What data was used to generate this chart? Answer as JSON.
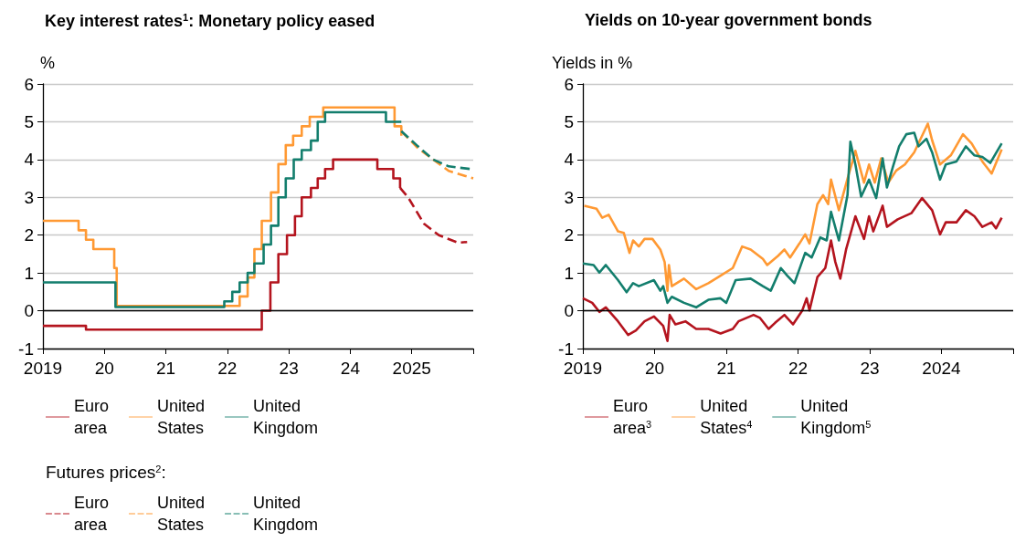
{
  "chart_data": [
    {
      "type": "line",
      "title": "Key interest rates$^{1}$: Monetary policy eased",
      "ylabel": "%",
      "legend_title": "Futures prices$^{2}$:",
      "xlim": [
        2019,
        2026
      ],
      "xticks": [
        2019,
        {
          "value": 2020,
          "label": "20"
        },
        {
          "value": 2021,
          "label": "21"
        },
        {
          "value": 2022,
          "label": "22"
        },
        {
          "value": 2023,
          "label": "23"
        },
        {
          "value": 2024,
          "label": "24"
        },
        2025,
        {
          "value": 2026,
          "label": null
        }
      ],
      "ylim": [
        -1,
        6
      ],
      "yticks": [
        -1,
        0,
        1,
        2,
        3,
        4,
        5,
        6
      ],
      "grid": "y",
      "legend": "bottom",
      "ref_lines": [
        {
          "axis": "y",
          "value": 0,
          "color": "#000000"
        }
      ],
      "series": [
        {
          "name": "Euro area",
          "type": "step",
          "color": "#b4141e",
          "line_style": "solid",
          "x": [
            2019,
            2019.7,
            2022.56,
            2022.7,
            2022.83,
            2022.97,
            2023.1,
            2023.21,
            2023.36,
            2023.47,
            2023.59,
            2023.72,
            2024.44,
            2024.7,
            2024.81
          ],
          "values": [
            -0.4,
            -0.5,
            0,
            0.75,
            1.5,
            2,
            2.5,
            3,
            3.25,
            3.5,
            3.75,
            4,
            3.75,
            3.5,
            3.25
          ]
        },
        {
          "name": "United States",
          "type": "step",
          "color": "#ff9933",
          "line_style": "solid",
          "x": [
            2019,
            2019.58,
            2019.7,
            2019.82,
            2020.16,
            2020.2,
            2022.2,
            2022.33,
            2022.44,
            2022.56,
            2022.71,
            2022.83,
            2022.95,
            2023.07,
            2023.21,
            2023.34,
            2023.56,
            2024.72,
            2024.83
          ],
          "values": [
            2.38,
            2.13,
            1.88,
            1.63,
            1.13,
            0.13,
            0.38,
            0.88,
            1.63,
            2.38,
            3.13,
            3.88,
            4.38,
            4.63,
            4.88,
            5.13,
            5.38,
            4.88,
            4.63
          ]
        },
        {
          "name": "United Kingdom",
          "type": "step",
          "color": "#137e6d",
          "line_style": "solid",
          "x": [
            2019,
            2020.18,
            2021.95,
            2022.08,
            2022.2,
            2022.33,
            2022.44,
            2022.59,
            2022.71,
            2022.83,
            2022.95,
            2023.08,
            2023.21,
            2023.36,
            2023.47,
            2023.59,
            2024.58,
            2024.83
          ],
          "values": [
            0.75,
            0.1,
            0.25,
            0.5,
            0.75,
            1,
            1.25,
            1.75,
            2.25,
            3,
            3.5,
            4,
            4.25,
            4.5,
            5,
            5.25,
            5,
            5
          ]
        },
        {
          "name": "Euro area",
          "type": "line",
          "color": "#b4141e",
          "line_style": "dashed",
          "x": [
            2024.81,
            2024.94,
            2025.2,
            2025.44,
            2025.75,
            2025.9
          ],
          "values": [
            3.25,
            3.0,
            2.3,
            2.0,
            1.8,
            1.82
          ]
        },
        {
          "name": "United States",
          "type": "line",
          "color": "#ff9933",
          "line_style": "dashed",
          "x": [
            2024.83,
            2025.1,
            2025.35,
            2025.6,
            2026
          ],
          "values": [
            4.75,
            4.3,
            4.0,
            3.7,
            3.5
          ]
        },
        {
          "name": "United Kingdom",
          "type": "line",
          "color": "#137e6d",
          "line_style": "dashed",
          "x": [
            2024.83,
            2025.1,
            2025.35,
            2025.6,
            2026
          ],
          "values": [
            4.75,
            4.35,
            4.0,
            3.82,
            3.74
          ]
        }
      ]
    },
    {
      "type": "line",
      "title": "Yields on 10-year government bonds",
      "ylabel": "Yields in %",
      "xlim": [
        2019,
        2025
      ],
      "xticks": [
        2019,
        {
          "value": 2020,
          "label": "20"
        },
        {
          "value": 2021,
          "label": "21"
        },
        {
          "value": 2022,
          "label": "22"
        },
        {
          "value": 2023,
          "label": "23"
        },
        2024,
        {
          "value": 2025,
          "label": null
        }
      ],
      "ylim": [
        -1,
        6
      ],
      "yticks": [
        -1,
        0,
        1,
        2,
        3,
        4,
        5,
        6
      ],
      "grid": "y",
      "legend": "bottom",
      "ref_lines": [
        {
          "axis": "y",
          "value": 0,
          "color": "#000000"
        }
      ],
      "series": [
        {
          "name": "Euro area$^{3}$",
          "color": "#b4141e",
          "x": [
            2019.0,
            2019.13,
            2019.23,
            2019.32,
            2019.49,
            2019.63,
            2019.74,
            2019.86,
            2019.99,
            2020.12,
            2020.18,
            2020.21,
            2020.29,
            2020.43,
            2020.58,
            2020.75,
            2020.92,
            2021.09,
            2021.17,
            2021.38,
            2021.47,
            2021.59,
            2021.68,
            2021.81,
            2021.93,
            2022.06,
            2022.12,
            2022.16,
            2022.27,
            2022.38,
            2022.46,
            2022.52,
            2022.59,
            2022.67,
            2022.8,
            2022.92,
            2022.99,
            2023.05,
            2023.18,
            2023.24,
            2023.39,
            2023.58,
            2023.73,
            2023.87,
            2023.98,
            2024.06,
            2024.21,
            2024.34,
            2024.46,
            2024.57,
            2024.7,
            2024.76,
            2024.84
          ],
          "values": [
            0.33,
            0.21,
            -0.03,
            0.09,
            -0.28,
            -0.64,
            -0.52,
            -0.28,
            -0.15,
            -0.4,
            -0.8,
            -0.11,
            -0.36,
            -0.28,
            -0.48,
            -0.48,
            -0.6,
            -0.48,
            -0.28,
            -0.11,
            -0.19,
            -0.48,
            -0.32,
            -0.11,
            -0.36,
            0.01,
            0.33,
            0.01,
            0.89,
            1.13,
            1.86,
            1.29,
            0.85,
            1.62,
            2.5,
            1.9,
            2.5,
            2.1,
            2.78,
            2.22,
            2.42,
            2.58,
            2.98,
            2.66,
            2.02,
            2.34,
            2.34,
            2.66,
            2.5,
            2.22,
            2.34,
            2.18,
            2.46
          ]
        },
        {
          "name": "United States$^{4}$",
          "color": "#ff9933",
          "x": [
            2019.02,
            2019.19,
            2019.27,
            2019.36,
            2019.49,
            2019.57,
            2019.65,
            2019.7,
            2019.78,
            2019.86,
            2019.97,
            2020.08,
            2020.14,
            2020.18,
            2020.2,
            2020.24,
            2020.41,
            2020.58,
            2020.75,
            2020.92,
            2021.09,
            2021.22,
            2021.34,
            2021.51,
            2021.57,
            2021.72,
            2021.81,
            2021.89,
            2022.02,
            2022.1,
            2022.16,
            2022.27,
            2022.35,
            2022.42,
            2022.46,
            2022.57,
            2022.71,
            2022.76,
            2022.8,
            2022.92,
            2022.99,
            2023.07,
            2023.16,
            2023.26,
            2023.37,
            2023.49,
            2023.62,
            2023.81,
            2023.87,
            2023.98,
            2024.13,
            2024.3,
            2024.42,
            2024.57,
            2024.7,
            2024.84
          ],
          "values": [
            2.78,
            2.7,
            2.46,
            2.54,
            2.1,
            2.06,
            1.53,
            1.86,
            1.7,
            1.9,
            1.9,
            1.62,
            1.29,
            0.53,
            1.21,
            0.65,
            0.85,
            0.57,
            0.73,
            0.93,
            1.13,
            1.7,
            1.62,
            1.37,
            1.21,
            1.45,
            1.62,
            1.41,
            1.78,
            2.02,
            1.78,
            2.82,
            3.06,
            2.82,
            3.47,
            2.66,
            3.63,
            3.95,
            4.23,
            3.39,
            3.87,
            3.39,
            4.03,
            3.39,
            3.71,
            3.87,
            4.19,
            4.95,
            4.51,
            3.87,
            4.11,
            4.67,
            4.43,
            3.95,
            3.63,
            4.27
          ]
        },
        {
          "name": "United Kingdom$^{5}$",
          "color": "#137e6d",
          "x": [
            2019.0,
            2019.15,
            2019.23,
            2019.32,
            2019.49,
            2019.61,
            2019.7,
            2019.78,
            2019.99,
            2020.08,
            2020.12,
            2020.18,
            2020.24,
            2020.41,
            2020.58,
            2020.75,
            2020.92,
            2021.0,
            2021.13,
            2021.34,
            2021.51,
            2021.62,
            2021.76,
            2021.85,
            2021.95,
            2022.1,
            2022.19,
            2022.31,
            2022.4,
            2022.46,
            2022.57,
            2022.69,
            2022.73,
            2022.8,
            2022.88,
            2022.99,
            2023.09,
            2023.18,
            2023.24,
            2023.32,
            2023.41,
            2023.51,
            2023.62,
            2023.68,
            2023.79,
            2023.87,
            2023.98,
            2024.06,
            2024.21,
            2024.34,
            2024.46,
            2024.57,
            2024.68,
            2024.84
          ],
          "values": [
            1.25,
            1.21,
            1.01,
            1.21,
            0.81,
            0.49,
            0.73,
            0.65,
            0.81,
            0.53,
            0.65,
            0.21,
            0.37,
            0.21,
            0.09,
            0.29,
            0.33,
            0.21,
            0.81,
            0.85,
            0.65,
            0.53,
            1.13,
            0.93,
            0.73,
            1.53,
            1.41,
            1.94,
            1.86,
            2.62,
            1.86,
            3.06,
            4.47,
            3.87,
            3.02,
            3.47,
            2.98,
            4.03,
            3.26,
            3.79,
            4.35,
            4.67,
            4.71,
            4.35,
            4.55,
            4.19,
            3.47,
            3.87,
            3.95,
            4.35,
            4.11,
            4.07,
            3.91,
            4.43
          ]
        }
      ]
    }
  ]
}
